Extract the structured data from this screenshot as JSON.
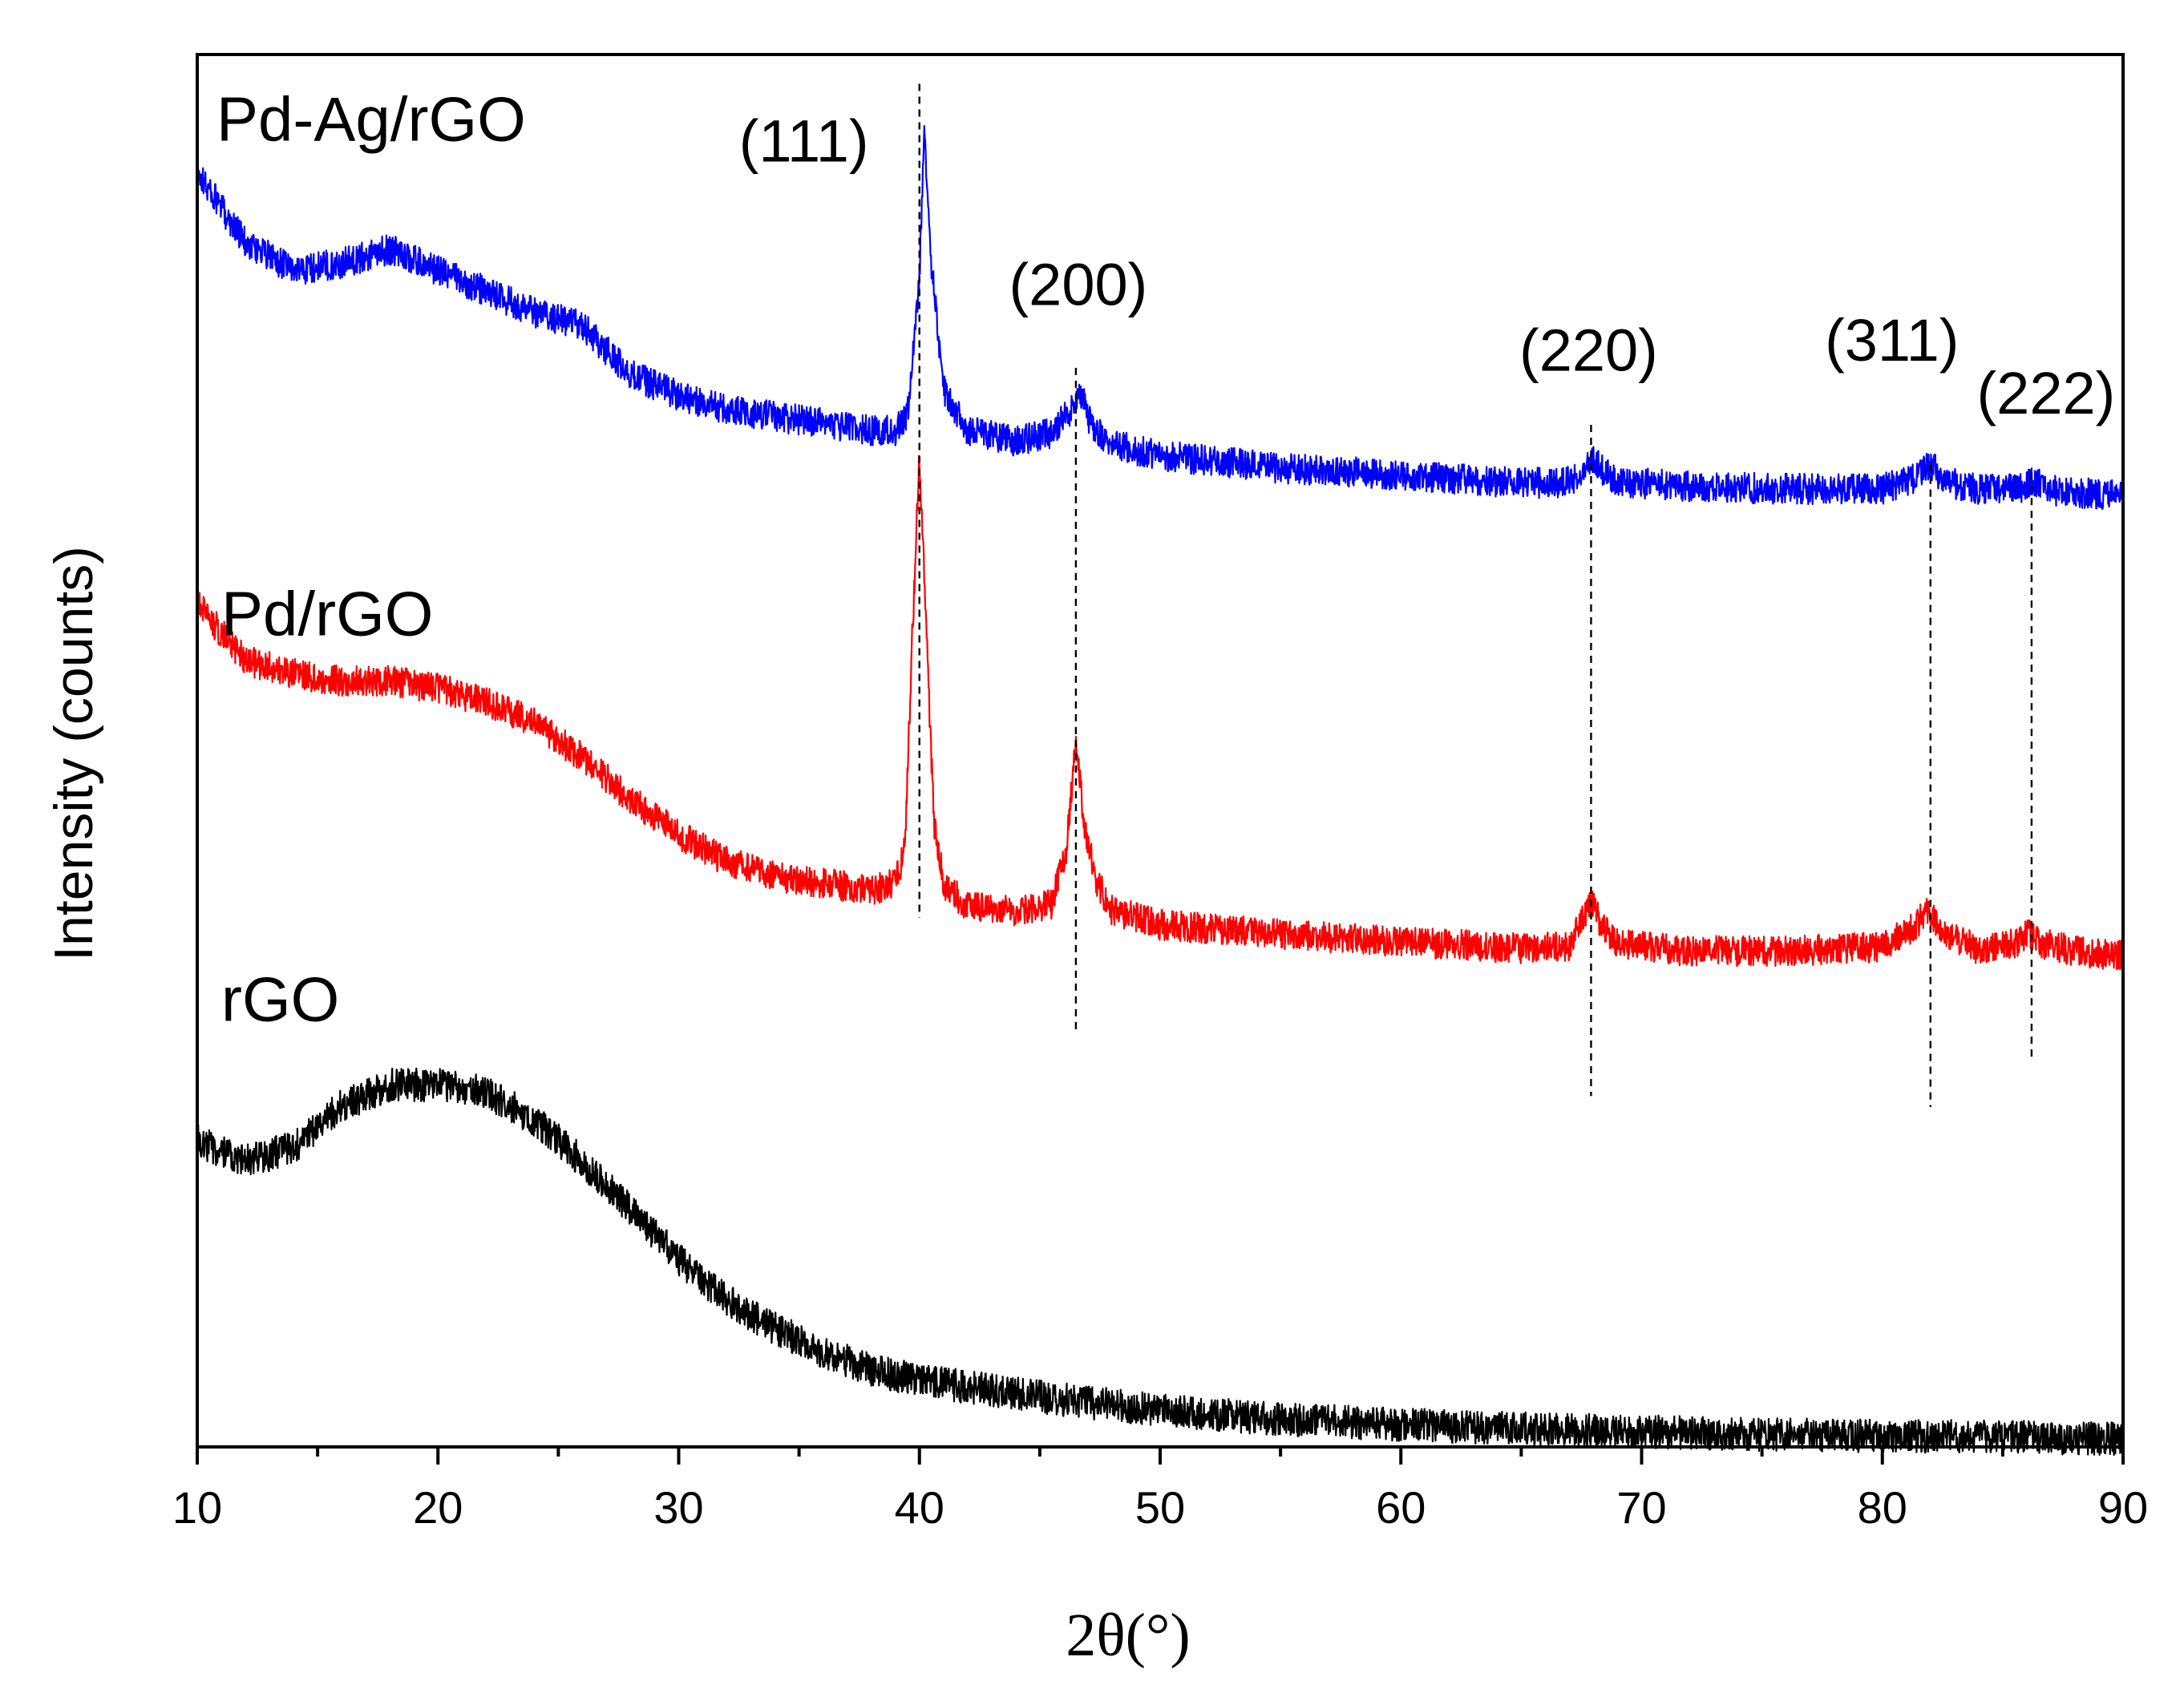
{
  "chart_data": {
    "type": "line",
    "title": "",
    "xlabel": "2θ(°)",
    "ylabel": "Intensity (counts)",
    "xlim": [
      10,
      90
    ],
    "ylim": [
      0,
      100
    ],
    "yticks_shown": false,
    "grid": false,
    "x_major_ticks": [
      10,
      20,
      30,
      40,
      50,
      60,
      70,
      80,
      90
    ],
    "x_minor_ticks": [
      15,
      25,
      35,
      45,
      55,
      65,
      75,
      85
    ],
    "tick_labels": [
      "10",
      "20",
      "30",
      "40",
      "50",
      "60",
      "70",
      "80",
      "90"
    ],
    "series": [
      {
        "name": "Pd-Ag/rGO",
        "color": "#0000ff",
        "noise": 1.1,
        "x": [
          10,
          11,
          12,
          14,
          16,
          18,
          20,
          22,
          24,
          26,
          28,
          30,
          32,
          34,
          36,
          38,
          39.0,
          39.5,
          40.0,
          40.2,
          40.5,
          41.0,
          42,
          44,
          45.5,
          46.3,
          46.7,
          47.1,
          48,
          50,
          55,
          60,
          65,
          67,
          67.6,
          68.0,
          68.4,
          69,
          72,
          76,
          80,
          81.4,
          82.0,
          82.6,
          84,
          85.8,
          86.3,
          87,
          90
        ],
        "y": [
          91.5,
          89,
          86.5,
          84.5,
          85,
          86,
          84.5,
          83,
          81.5,
          80.5,
          77,
          75.5,
          74.5,
          74,
          73.5,
          73,
          73,
          74,
          84,
          95,
          85,
          76,
          73,
          72.2,
          72.8,
          74.5,
          75.8,
          73.5,
          72,
          71.2,
          70.3,
          69.8,
          69.2,
          69.3,
          70.3,
          71.1,
          70.1,
          69.3,
          69,
          68.8,
          68.8,
          69.6,
          70.6,
          69.3,
          68.8,
          68.9,
          69.4,
          68.7,
          68.3
        ]
      },
      {
        "name": "Pd/rGO",
        "color": "#ff0000",
        "noise": 1.1,
        "x": [
          10,
          11,
          12,
          14,
          16,
          18,
          20,
          22,
          24,
          26,
          28,
          30,
          32,
          34,
          36,
          38,
          39.0,
          39.4,
          39.7,
          40.0,
          40.3,
          40.6,
          41.0,
          42,
          44,
          45.5,
          46.1,
          46.5,
          46.9,
          47.4,
          48,
          50,
          55,
          60,
          65,
          67,
          67.5,
          67.9,
          68.3,
          69,
          72,
          76,
          80,
          81.3,
          81.9,
          82.5,
          84,
          85.6,
          86.1,
          86.6,
          88,
          90
        ],
        "y": [
          60.5,
          58.5,
          56.5,
          55.5,
          55,
          55,
          54.5,
          53.5,
          52,
          49.5,
          46.5,
          44,
          42,
          41,
          40.5,
          40,
          40.5,
          43,
          58,
          71,
          58,
          45,
          40.5,
          38.8,
          38.5,
          39,
          43,
          50.5,
          44,
          40.5,
          38.5,
          37.5,
          36.8,
          36.3,
          35.8,
          36,
          37.8,
          39.2,
          37.6,
          36.1,
          35.6,
          35.6,
          35.9,
          37.3,
          38.5,
          37,
          35.7,
          36.2,
          37,
          36.2,
          35.6,
          35.3
        ]
      },
      {
        "name": "rGO",
        "color": "#000000",
        "noise": 1.2,
        "x": [
          10,
          12,
          14,
          16,
          18,
          20,
          22,
          24,
          26,
          28,
          30,
          32,
          34,
          36,
          38,
          40,
          42,
          45,
          50,
          55,
          60,
          65,
          70,
          75,
          80,
          85,
          90
        ],
        "y": [
          22,
          20.5,
          21.5,
          24.5,
          26,
          26,
          25.5,
          23.5,
          20.5,
          17,
          13.5,
          10.5,
          8.5,
          6.8,
          5.5,
          4.8,
          4.3,
          3.6,
          2.6,
          2.0,
          1.6,
          1.3,
          1.1,
          0.9,
          0.8,
          0.7,
          0.6
        ]
      }
    ],
    "series_labels": [
      {
        "text": "Pd-Ag/rGO",
        "x": 10.8,
        "y": 93.8
      },
      {
        "text": "Pd/rGO",
        "x": 11.0,
        "y": 58.3
      },
      {
        "text": "rGO",
        "x": 11.0,
        "y": 30.6
      }
    ],
    "reference_lines": [
      {
        "x": 40.0,
        "y_top": 97.9,
        "y_bottom": 38.0
      },
      {
        "x": 46.5,
        "y_top": 77.5,
        "y_bottom": 29.8
      },
      {
        "x": 67.9,
        "y_top": 73.4,
        "y_bottom": 25.2
      },
      {
        "x": 82.0,
        "y_top": 70.6,
        "y_bottom": 24.4
      },
      {
        "x": 86.2,
        "y_top": 70.0,
        "y_bottom": 27.8
      }
    ],
    "annotations": [
      {
        "text": "(111)",
        "x": 35.2,
        "y": 92.3
      },
      {
        "text": "(200)",
        "x": 46.6,
        "y": 82.0
      },
      {
        "text": "(220)",
        "x": 67.8,
        "y": 77.3
      },
      {
        "text": "(311)",
        "x": 80.4,
        "y": 78.0
      },
      {
        "text": "(222)",
        "x": 86.8,
        "y": 74.2
      }
    ]
  }
}
